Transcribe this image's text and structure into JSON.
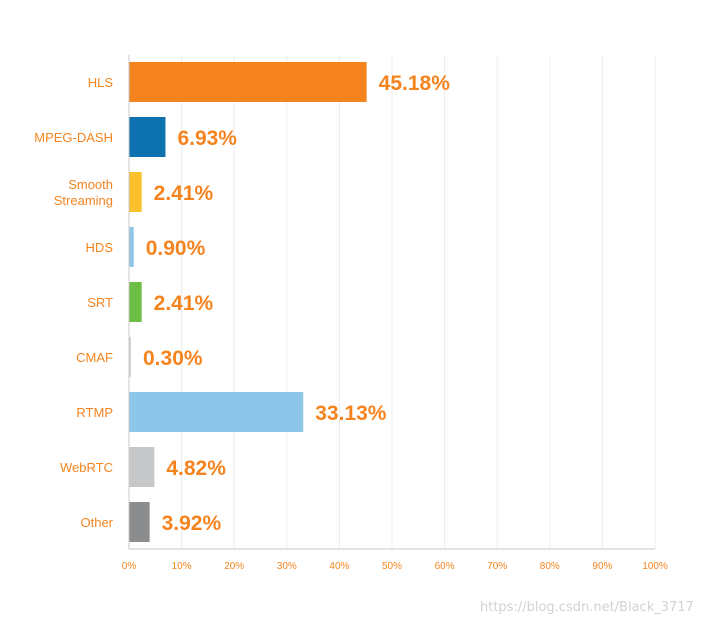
{
  "chart_data": {
    "type": "bar",
    "orientation": "horizontal",
    "title": "",
    "xlabel": "",
    "ylabel": "",
    "xlim": [
      0,
      100
    ],
    "grid": true,
    "legend": "none",
    "categories": [
      [
        "HLS"
      ],
      [
        "MPEG-DASH"
      ],
      [
        "Smooth",
        "Streaming"
      ],
      [
        "HDS"
      ],
      [
        "SRT"
      ],
      [
        "CMAF"
      ],
      [
        "RTMP"
      ],
      [
        "WebRTC"
      ],
      [
        "Other"
      ]
    ],
    "values": [
      45.18,
      6.93,
      2.41,
      0.9,
      2.41,
      0.3,
      33.13,
      4.82,
      3.92
    ],
    "value_labels": [
      "45.18%",
      "6.93%",
      "2.41%",
      "0.90%",
      "2.41%",
      "0.30%",
      "33.13%",
      "4.82%",
      "3.92%"
    ],
    "bar_colors": [
      "#f5841f",
      "#0f72b0",
      "#fbc02d",
      "#8ec6ea",
      "#6cbe45",
      "#cfd4d9",
      "#8ec6ea",
      "#c6c7c9",
      "#8a8c8e"
    ],
    "x_ticks": [
      0,
      10,
      20,
      30,
      40,
      50,
      60,
      70,
      80,
      90,
      100
    ],
    "x_tick_labels": [
      "0%",
      "10%",
      "20%",
      "30%",
      "40%",
      "50%",
      "60%",
      "70%",
      "80%",
      "90%",
      "100%"
    ],
    "label_color": "#f5841f",
    "grid_color": "#ececec",
    "axis_color": "#c8c8c8"
  },
  "watermark": "https://blog.csdn.net/Black_3717"
}
